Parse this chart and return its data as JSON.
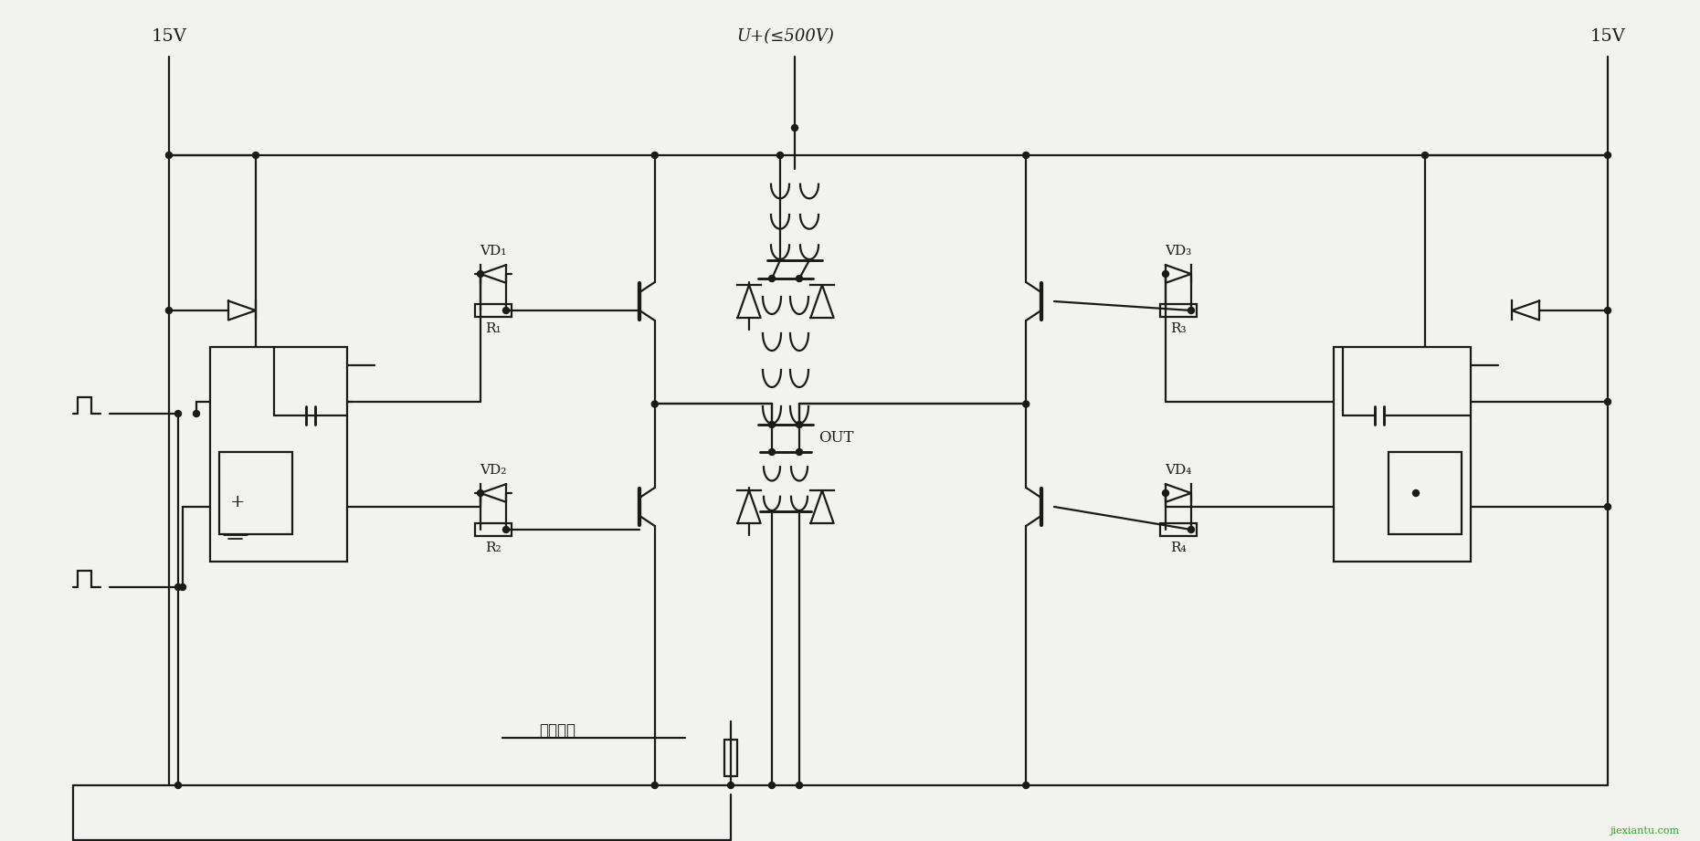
{
  "bg_color": "#f2f2ee",
  "line_color": "#1a1a1a",
  "lw": 1.6,
  "labels": {
    "15V_left": "15V",
    "15V_right": "15V",
    "U_plus": "U+(≤500V)",
    "OUT": "OUT",
    "VD1": "VD₁",
    "VD2": "VD₂",
    "VD3": "VD₃",
    "VD4": "VD₄",
    "R1": "R₁",
    "R2": "R₂",
    "R3": "R₃",
    "R4": "R₄",
    "current_detect": "电流检测",
    "watermark": "jiexiantu.com"
  }
}
